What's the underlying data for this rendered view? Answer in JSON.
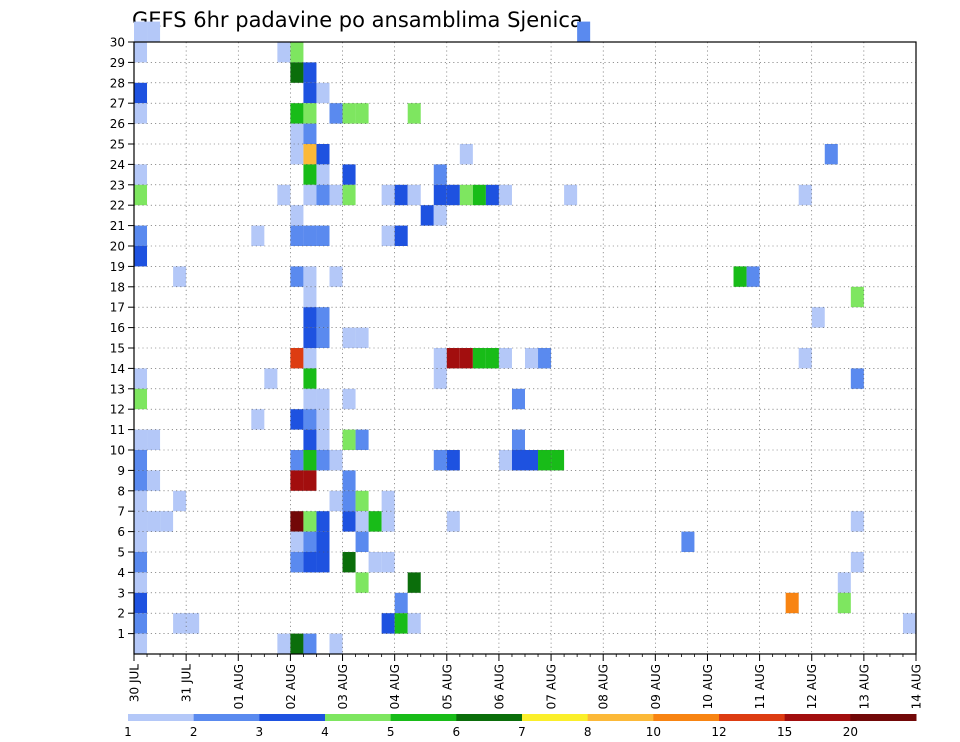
{
  "chart_data": {
    "type": "heatmap",
    "title": "GEFS 6hr padavine po ansamblima Sjenica",
    "xlabel": "",
    "ylabel": "",
    "x_tick_labels": [
      "30 JUL",
      "31 JUL",
      "01 AUG",
      "02 AUG",
      "03 AUG",
      "04 AUG",
      "05 AUG",
      "06 AUG",
      "07 AUG",
      "08 AUG",
      "09 AUG",
      "10 AUG",
      "11 AUG",
      "12 AUG",
      "13 AUG",
      "14 AUG"
    ],
    "y_tick_labels": [
      "1",
      "2",
      "3",
      "4",
      "5",
      "6",
      "7",
      "8",
      "9",
      "10",
      "11",
      "12",
      "13",
      "14",
      "15",
      "16",
      "17",
      "18",
      "19",
      "20",
      "21",
      "22",
      "23",
      "24",
      "25",
      "26",
      "27",
      "28",
      "29",
      "30"
    ],
    "x_range_days": [
      0,
      15
    ],
    "steps_per_day": 4,
    "y_range": [
      0,
      30
    ],
    "grid": true,
    "legend_placement": "bottom",
    "colorbar": {
      "boundary_labels": [
        "1",
        "2",
        "3",
        "4",
        "5",
        "6",
        "7",
        "8",
        "10",
        "12",
        "15",
        "20"
      ],
      "colors": [
        "#b4c8f8",
        "#5a8aef",
        "#1e52e0",
        "#7ee660",
        "#18bc18",
        "#0b6e0b",
        "#fbef2a",
        "#fcb938",
        "#f88412",
        "#dd3c12",
        "#a20e0e",
        "#720808"
      ]
    },
    "cells_note": "each cell: [time step index (6h steps from 30 JUL 00), ensemble member, color class index 0-11]",
    "cells": [
      [
        0,
        30,
        0
      ],
      [
        1,
        30,
        0
      ],
      [
        0,
        29,
        0
      ],
      [
        0,
        27,
        2
      ],
      [
        0,
        26,
        0
      ],
      [
        0,
        23,
        0
      ],
      [
        0,
        22,
        3
      ],
      [
        0,
        20,
        1
      ],
      [
        0,
        19,
        2
      ],
      [
        0,
        13,
        0
      ],
      [
        0,
        12,
        3
      ],
      [
        0,
        10,
        0
      ],
      [
        1,
        10,
        0
      ],
      [
        0,
        9,
        1
      ],
      [
        0,
        8,
        1
      ],
      [
        1,
        8,
        0
      ],
      [
        0,
        7,
        0
      ],
      [
        0,
        6,
        0
      ],
      [
        1,
        6,
        0
      ],
      [
        2,
        6,
        0
      ],
      [
        0,
        5,
        0
      ],
      [
        0,
        4,
        1
      ],
      [
        0,
        3,
        0
      ],
      [
        0,
        2,
        2
      ],
      [
        0,
        1,
        1
      ],
      [
        0,
        0,
        0
      ],
      [
        3,
        18,
        0
      ],
      [
        3,
        7,
        0
      ],
      [
        3,
        1,
        0
      ],
      [
        4,
        1,
        0
      ],
      [
        9,
        20,
        0
      ],
      [
        9,
        11,
        0
      ],
      [
        10,
        13,
        0
      ],
      [
        11,
        29,
        0
      ],
      [
        11,
        22,
        0
      ],
      [
        11,
        0,
        0
      ],
      [
        12,
        29,
        3
      ],
      [
        12,
        28,
        5
      ],
      [
        12,
        26,
        4
      ],
      [
        12,
        25,
        0
      ],
      [
        12,
        24,
        0
      ],
      [
        12,
        21,
        0
      ],
      [
        12,
        20,
        1
      ],
      [
        12,
        18,
        1
      ],
      [
        12,
        14,
        9
      ],
      [
        12,
        11,
        2
      ],
      [
        12,
        9,
        1
      ],
      [
        12,
        8,
        10
      ],
      [
        12,
        6,
        11
      ],
      [
        12,
        5,
        0
      ],
      [
        12,
        4,
        1
      ],
      [
        12,
        0,
        5
      ],
      [
        13,
        28,
        2
      ],
      [
        13,
        27,
        2
      ],
      [
        13,
        26,
        3
      ],
      [
        13,
        25,
        1
      ],
      [
        13,
        24,
        7
      ],
      [
        13,
        23,
        4
      ],
      [
        13,
        22,
        0
      ],
      [
        13,
        20,
        1
      ],
      [
        13,
        18,
        0
      ],
      [
        13,
        17,
        0
      ],
      [
        13,
        16,
        2
      ],
      [
        13,
        15,
        2
      ],
      [
        13,
        14,
        0
      ],
      [
        13,
        13,
        4
      ],
      [
        13,
        12,
        0
      ],
      [
        13,
        11,
        1
      ],
      [
        13,
        10,
        2
      ],
      [
        13,
        9,
        4
      ],
      [
        13,
        8,
        10
      ],
      [
        13,
        6,
        3
      ],
      [
        13,
        5,
        1
      ],
      [
        13,
        4,
        2
      ],
      [
        13,
        0,
        1
      ],
      [
        14,
        27,
        0
      ],
      [
        14,
        24,
        2
      ],
      [
        14,
        23,
        0
      ],
      [
        14,
        22,
        1
      ],
      [
        14,
        20,
        1
      ],
      [
        14,
        16,
        1
      ],
      [
        14,
        15,
        1
      ],
      [
        14,
        12,
        0
      ],
      [
        14,
        11,
        0
      ],
      [
        14,
        10,
        0
      ],
      [
        14,
        9,
        1
      ],
      [
        14,
        6,
        2
      ],
      [
        14,
        5,
        2
      ],
      [
        14,
        4,
        2
      ],
      [
        15,
        26,
        1
      ],
      [
        15,
        22,
        0
      ],
      [
        15,
        18,
        0
      ],
      [
        15,
        9,
        0
      ],
      [
        15,
        7,
        0
      ],
      [
        15,
        0,
        0
      ],
      [
        16,
        26,
        3
      ],
      [
        16,
        23,
        2
      ],
      [
        16,
        22,
        3
      ],
      [
        16,
        15,
        0
      ],
      [
        16,
        12,
        0
      ],
      [
        16,
        10,
        3
      ],
      [
        16,
        8,
        1
      ],
      [
        16,
        7,
        1
      ],
      [
        16,
        6,
        2
      ],
      [
        16,
        4,
        5
      ],
      [
        17,
        26,
        3
      ],
      [
        17,
        15,
        0
      ],
      [
        17,
        10,
        1
      ],
      [
        17,
        7,
        3
      ],
      [
        17,
        6,
        0
      ],
      [
        17,
        5,
        1
      ],
      [
        17,
        3,
        3
      ],
      [
        18,
        6,
        4
      ],
      [
        18,
        4,
        0
      ],
      [
        19,
        22,
        0
      ],
      [
        19,
        20,
        0
      ],
      [
        19,
        7,
        0
      ],
      [
        19,
        6,
        0
      ],
      [
        19,
        4,
        0
      ],
      [
        19,
        1,
        2
      ],
      [
        20,
        22,
        2
      ],
      [
        20,
        20,
        2
      ],
      [
        20,
        2,
        1
      ],
      [
        20,
        1,
        4
      ],
      [
        21,
        26,
        3
      ],
      [
        21,
        22,
        0
      ],
      [
        21,
        3,
        5
      ],
      [
        21,
        1,
        0
      ],
      [
        22,
        21,
        2
      ],
      [
        23,
        23,
        1
      ],
      [
        23,
        22,
        2
      ],
      [
        23,
        21,
        0
      ],
      [
        23,
        14,
        0
      ],
      [
        23,
        13,
        0
      ],
      [
        23,
        9,
        1
      ],
      [
        24,
        22,
        2
      ],
      [
        24,
        14,
        10
      ],
      [
        24,
        9,
        2
      ],
      [
        24,
        6,
        0
      ],
      [
        25,
        24,
        0
      ],
      [
        25,
        22,
        3
      ],
      [
        25,
        14,
        10
      ],
      [
        26,
        22,
        4
      ],
      [
        26,
        14,
        4
      ],
      [
        27,
        22,
        2
      ],
      [
        27,
        14,
        4
      ],
      [
        28,
        22,
        0
      ],
      [
        28,
        14,
        0
      ],
      [
        28,
        9,
        0
      ],
      [
        29,
        12,
        1
      ],
      [
        29,
        10,
        1
      ],
      [
        29,
        9,
        2
      ],
      [
        30,
        14,
        0
      ],
      [
        30,
        9,
        2
      ],
      [
        31,
        14,
        1
      ],
      [
        31,
        9,
        4
      ],
      [
        32,
        9,
        4
      ],
      [
        33,
        22,
        0
      ],
      [
        34,
        30,
        1
      ],
      [
        42,
        5,
        1
      ],
      [
        46,
        18,
        4
      ],
      [
        47,
        18,
        1
      ],
      [
        50,
        2,
        8
      ],
      [
        51,
        22,
        0
      ],
      [
        51,
        14,
        0
      ],
      [
        52,
        16,
        0
      ],
      [
        53,
        24,
        1
      ],
      [
        54,
        3,
        0
      ],
      [
        54,
        2,
        3
      ],
      [
        55,
        17,
        3
      ],
      [
        55,
        13,
        1
      ],
      [
        55,
        6,
        0
      ],
      [
        55,
        4,
        0
      ],
      [
        59,
        1,
        0
      ]
    ]
  }
}
